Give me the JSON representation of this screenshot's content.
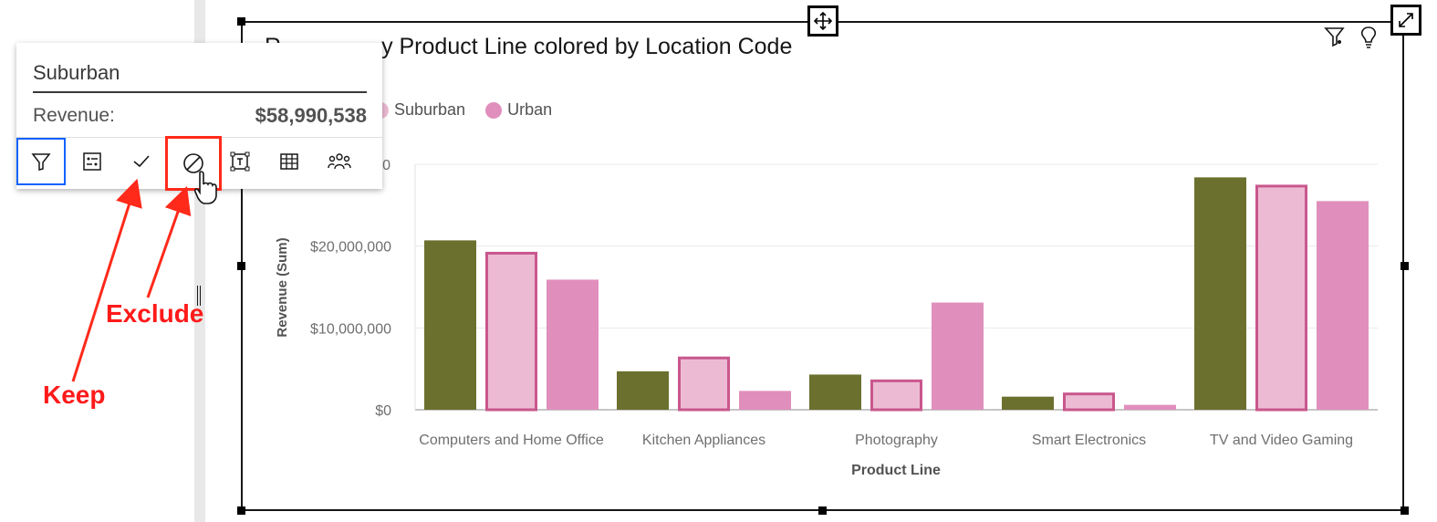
{
  "widget": {
    "title": "Revenue by Product Line colored by Location Code",
    "title_visible": "y Product Line colored by Location Code",
    "title_prefix_visible": "R"
  },
  "legend": [
    {
      "label": "Suburban",
      "color": "#ecbbd3"
    },
    {
      "label": "Urban",
      "color": "#e08fbd"
    }
  ],
  "popover": {
    "title": "Suburban",
    "metric_label": "Revenue:",
    "metric_value": "$58,990,538",
    "tools": [
      "filter-icon",
      "drill-icon",
      "keep-check-icon",
      "exclude-icon",
      "text-icon",
      "table-icon",
      "group-icon"
    ]
  },
  "annotations": {
    "exclude": "Exclude",
    "keep": "Keep"
  },
  "chart_data": {
    "type": "bar",
    "title": "Revenue by Product Line colored by Location Code",
    "xlabel": "Product Line",
    "ylabel": "Revenue (Sum)",
    "ylim": [
      0,
      30000000
    ],
    "yticks": [
      "$0",
      "$10,000,000",
      "$20,000,000"
    ],
    "categories": [
      "Computers and Home Office",
      "Kitchen Appliances",
      "Photography",
      "Smart Electronics",
      "TV and Video Gaming"
    ],
    "series": [
      {
        "name": "",
        "color": "#6b702e",
        "values": [
          20700000,
          4700000,
          4300000,
          1600000,
          28400000
        ]
      },
      {
        "name": "Suburban",
        "color": "#ecbbd3",
        "outline": "#c9578d",
        "values": [
          19300000,
          6500000,
          3700000,
          2100000,
          27500000
        ]
      },
      {
        "name": "Urban",
        "color": "#e08fbd",
        "values": [
          15900000,
          2300000,
          13100000,
          600000,
          25500000
        ]
      }
    ],
    "grid": true
  }
}
